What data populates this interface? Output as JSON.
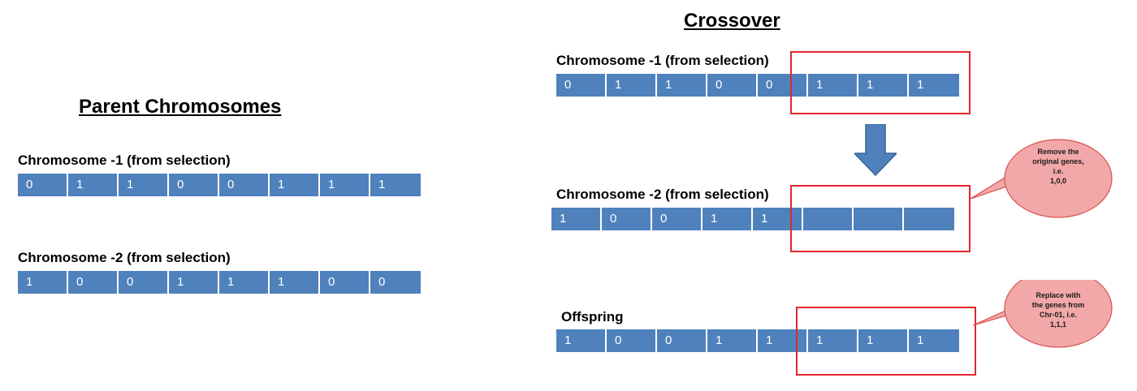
{
  "parent": {
    "title": "Parent Chromosomes",
    "chr1_label": "Chromosome -1 (from selection)",
    "chr1_genes": [
      "0",
      "1",
      "1",
      "0",
      "0",
      "1",
      "1",
      "1"
    ],
    "chr2_label": "Chromosome -2 (from selection)",
    "chr2_genes": [
      "1",
      "0",
      "0",
      "1",
      "1",
      "1",
      "0",
      "0"
    ]
  },
  "crossover": {
    "title": "Crossover",
    "chr1_label": "Chromosome -1 (from selection)",
    "chr1_genes": [
      "0",
      "1",
      "1",
      "0",
      "0",
      "1",
      "1",
      "1"
    ],
    "chr2_label": "Chromosome -2 (from selection)",
    "chr2_genes": [
      "1",
      "0",
      "0",
      "1",
      "1",
      "",
      "",
      ""
    ],
    "offspring_label": "Offspring",
    "offspring_genes": [
      "1",
      "0",
      "0",
      "1",
      "1",
      "1",
      "1",
      "1"
    ],
    "callout_remove": "Remove the\noriginal genes,\ni.e.\n1,0,0",
    "callout_replace": "Replace with\nthe genes from\nChr-01, i.e.\n1,1,1"
  },
  "colors": {
    "gene_fill": "#4f81bd",
    "highlight_box": "#e3262e",
    "callout_fill": "#f2a8a8",
    "arrow_fill": "#4f81bd"
  }
}
